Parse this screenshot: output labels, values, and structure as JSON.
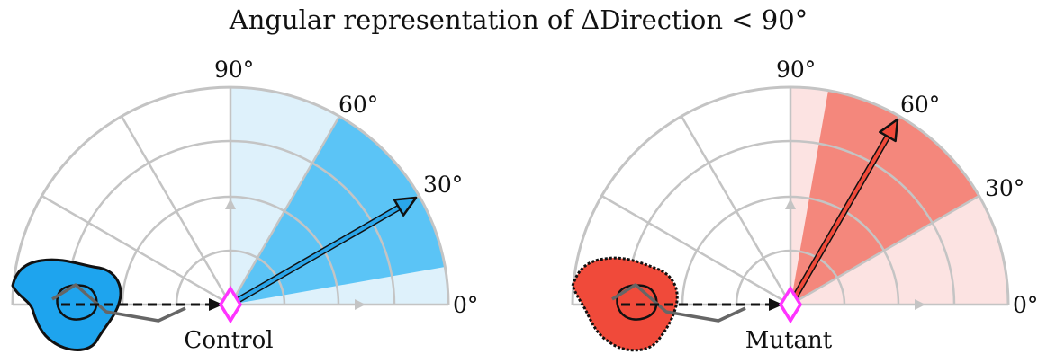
{
  "title": "Angular representation of ΔDirection < 90°",
  "angle_labels": {
    "a0": "0°",
    "a30": "30°",
    "a60": "60°",
    "a90": "90°"
  },
  "panels": [
    {
      "label": "Control",
      "cell_color": "#1ea4ee",
      "light_fill": "#def1fb",
      "mid_fill": "#5bc4f6",
      "arrow_color": "#2aa6ea",
      "arrow_angle_deg": 30,
      "inner_sector_deg": [
        10,
        60
      ],
      "outer_sector_deg": [
        0,
        90
      ]
    },
    {
      "label": "Mutant",
      "cell_color": "#f04a3a",
      "light_fill": "#fce3e2",
      "mid_fill": "#f4877c",
      "arrow_color": "#f04a3a",
      "arrow_angle_deg": 60,
      "inner_sector_deg": [
        30,
        80
      ],
      "outer_sector_deg": [
        0,
        90
      ]
    }
  ],
  "colors": {
    "grid": "#c4c4c4",
    "marker": "#ff33ff",
    "dark_arrow": "#666666"
  }
}
